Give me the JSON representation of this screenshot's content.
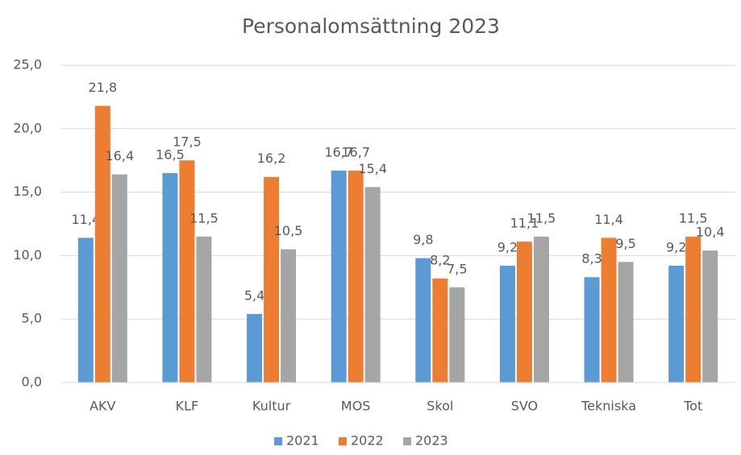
{
  "chart_data": {
    "type": "bar",
    "title": "Personalomsättning 2023",
    "categories": [
      "AKV",
      "KLF",
      "Kultur",
      "MOS",
      "Skol",
      "SVO",
      "Tekniska",
      "Tot"
    ],
    "series": [
      {
        "name": "2021",
        "color": "#5b9bd5",
        "values": [
          11.4,
          16.5,
          5.4,
          16.7,
          9.8,
          9.2,
          8.3,
          9.2
        ],
        "value_labels": [
          "11,4",
          "16,5",
          "5,4",
          "16,7",
          "9,8",
          "9,2",
          "8,3",
          "9,2"
        ]
      },
      {
        "name": "2022",
        "color": "#ed7d31",
        "values": [
          21.8,
          17.5,
          16.2,
          16.7,
          8.2,
          11.1,
          11.4,
          11.5
        ],
        "value_labels": [
          "21,8",
          "17,5",
          "16,2",
          "16,7",
          "8,2",
          "11,1",
          "11,4",
          "11,5"
        ]
      },
      {
        "name": "2023",
        "color": "#a5a5a5",
        "values": [
          16.4,
          11.5,
          10.5,
          15.4,
          7.5,
          11.5,
          9.5,
          10.4
        ],
        "value_labels": [
          "16,4",
          "11,5",
          "10,5",
          "15,4",
          "7,5",
          "11,5",
          "9,5",
          "10,4"
        ]
      }
    ],
    "ylim": [
      0,
      25
    ],
    "yticks": [
      {
        "value": 0,
        "label": "0,0"
      },
      {
        "value": 5,
        "label": "5,0"
      },
      {
        "value": 10,
        "label": "10,0"
      },
      {
        "value": 15,
        "label": "15,0"
      },
      {
        "value": 20,
        "label": "20,0"
      },
      {
        "value": 25,
        "label": "25,0"
      }
    ],
    "grid": true,
    "legend": "bottom"
  }
}
